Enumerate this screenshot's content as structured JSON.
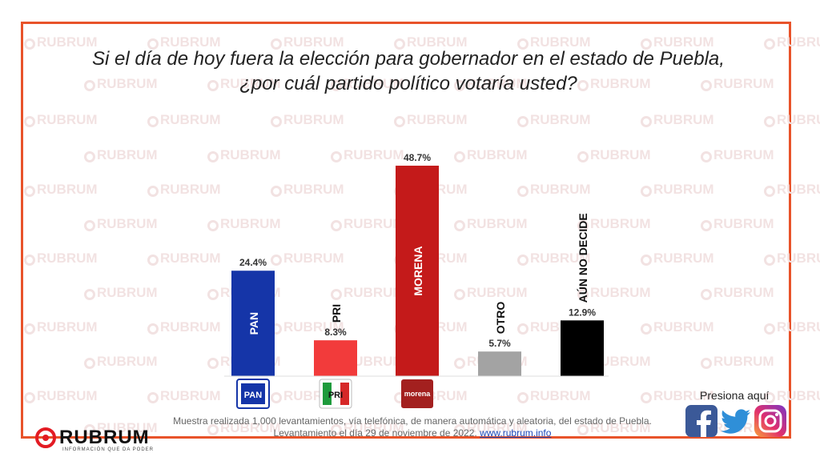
{
  "title_line1": "Si el día de hoy fuera la elección para gobernador en el estado de Puebla,",
  "title_line2": "¿por cuál partido político votaría usted?",
  "watermark_text": "RUBRUM",
  "footnote_line1": "Muestra realizada 1,000 levantamientos, vía telefónica, de manera automática y aleatoria, del estado de Puebla.",
  "footnote_line2_text": "Levantamiento el día 29 de noviembre de 2022.",
  "footnote_link": "www.rubrum.info",
  "logo": {
    "name": "RUBRUM",
    "tagline": "INFORMACIÓN QUE DA PODER"
  },
  "social": {
    "label": "Presiona aquí",
    "icons": [
      "facebook-icon",
      "twitter-icon",
      "instagram-icon"
    ]
  },
  "colors": {
    "frame": "#e8532a",
    "brand_red": "#e31b23"
  },
  "chart_data": {
    "type": "bar",
    "categories": [
      "PAN",
      "PRI",
      "MORENA",
      "OTRO",
      "AÚN NO DECIDE"
    ],
    "values": [
      24.4,
      8.3,
      48.7,
      5.7,
      12.9
    ],
    "value_labels": [
      "24.4%",
      "8.3%",
      "48.7%",
      "5.7%",
      "12.9%"
    ],
    "colors": [
      "#1535a8",
      "#f23b3b",
      "#c41a1a",
      "#a3a3a3",
      "#000000"
    ],
    "label_inside": [
      true,
      false,
      true,
      false,
      false
    ],
    "party_logos": [
      "PAN",
      "PRI",
      "morena",
      "",
      ""
    ],
    "ylim": [
      0,
      50
    ],
    "title": "",
    "xlabel": "",
    "ylabel": ""
  }
}
